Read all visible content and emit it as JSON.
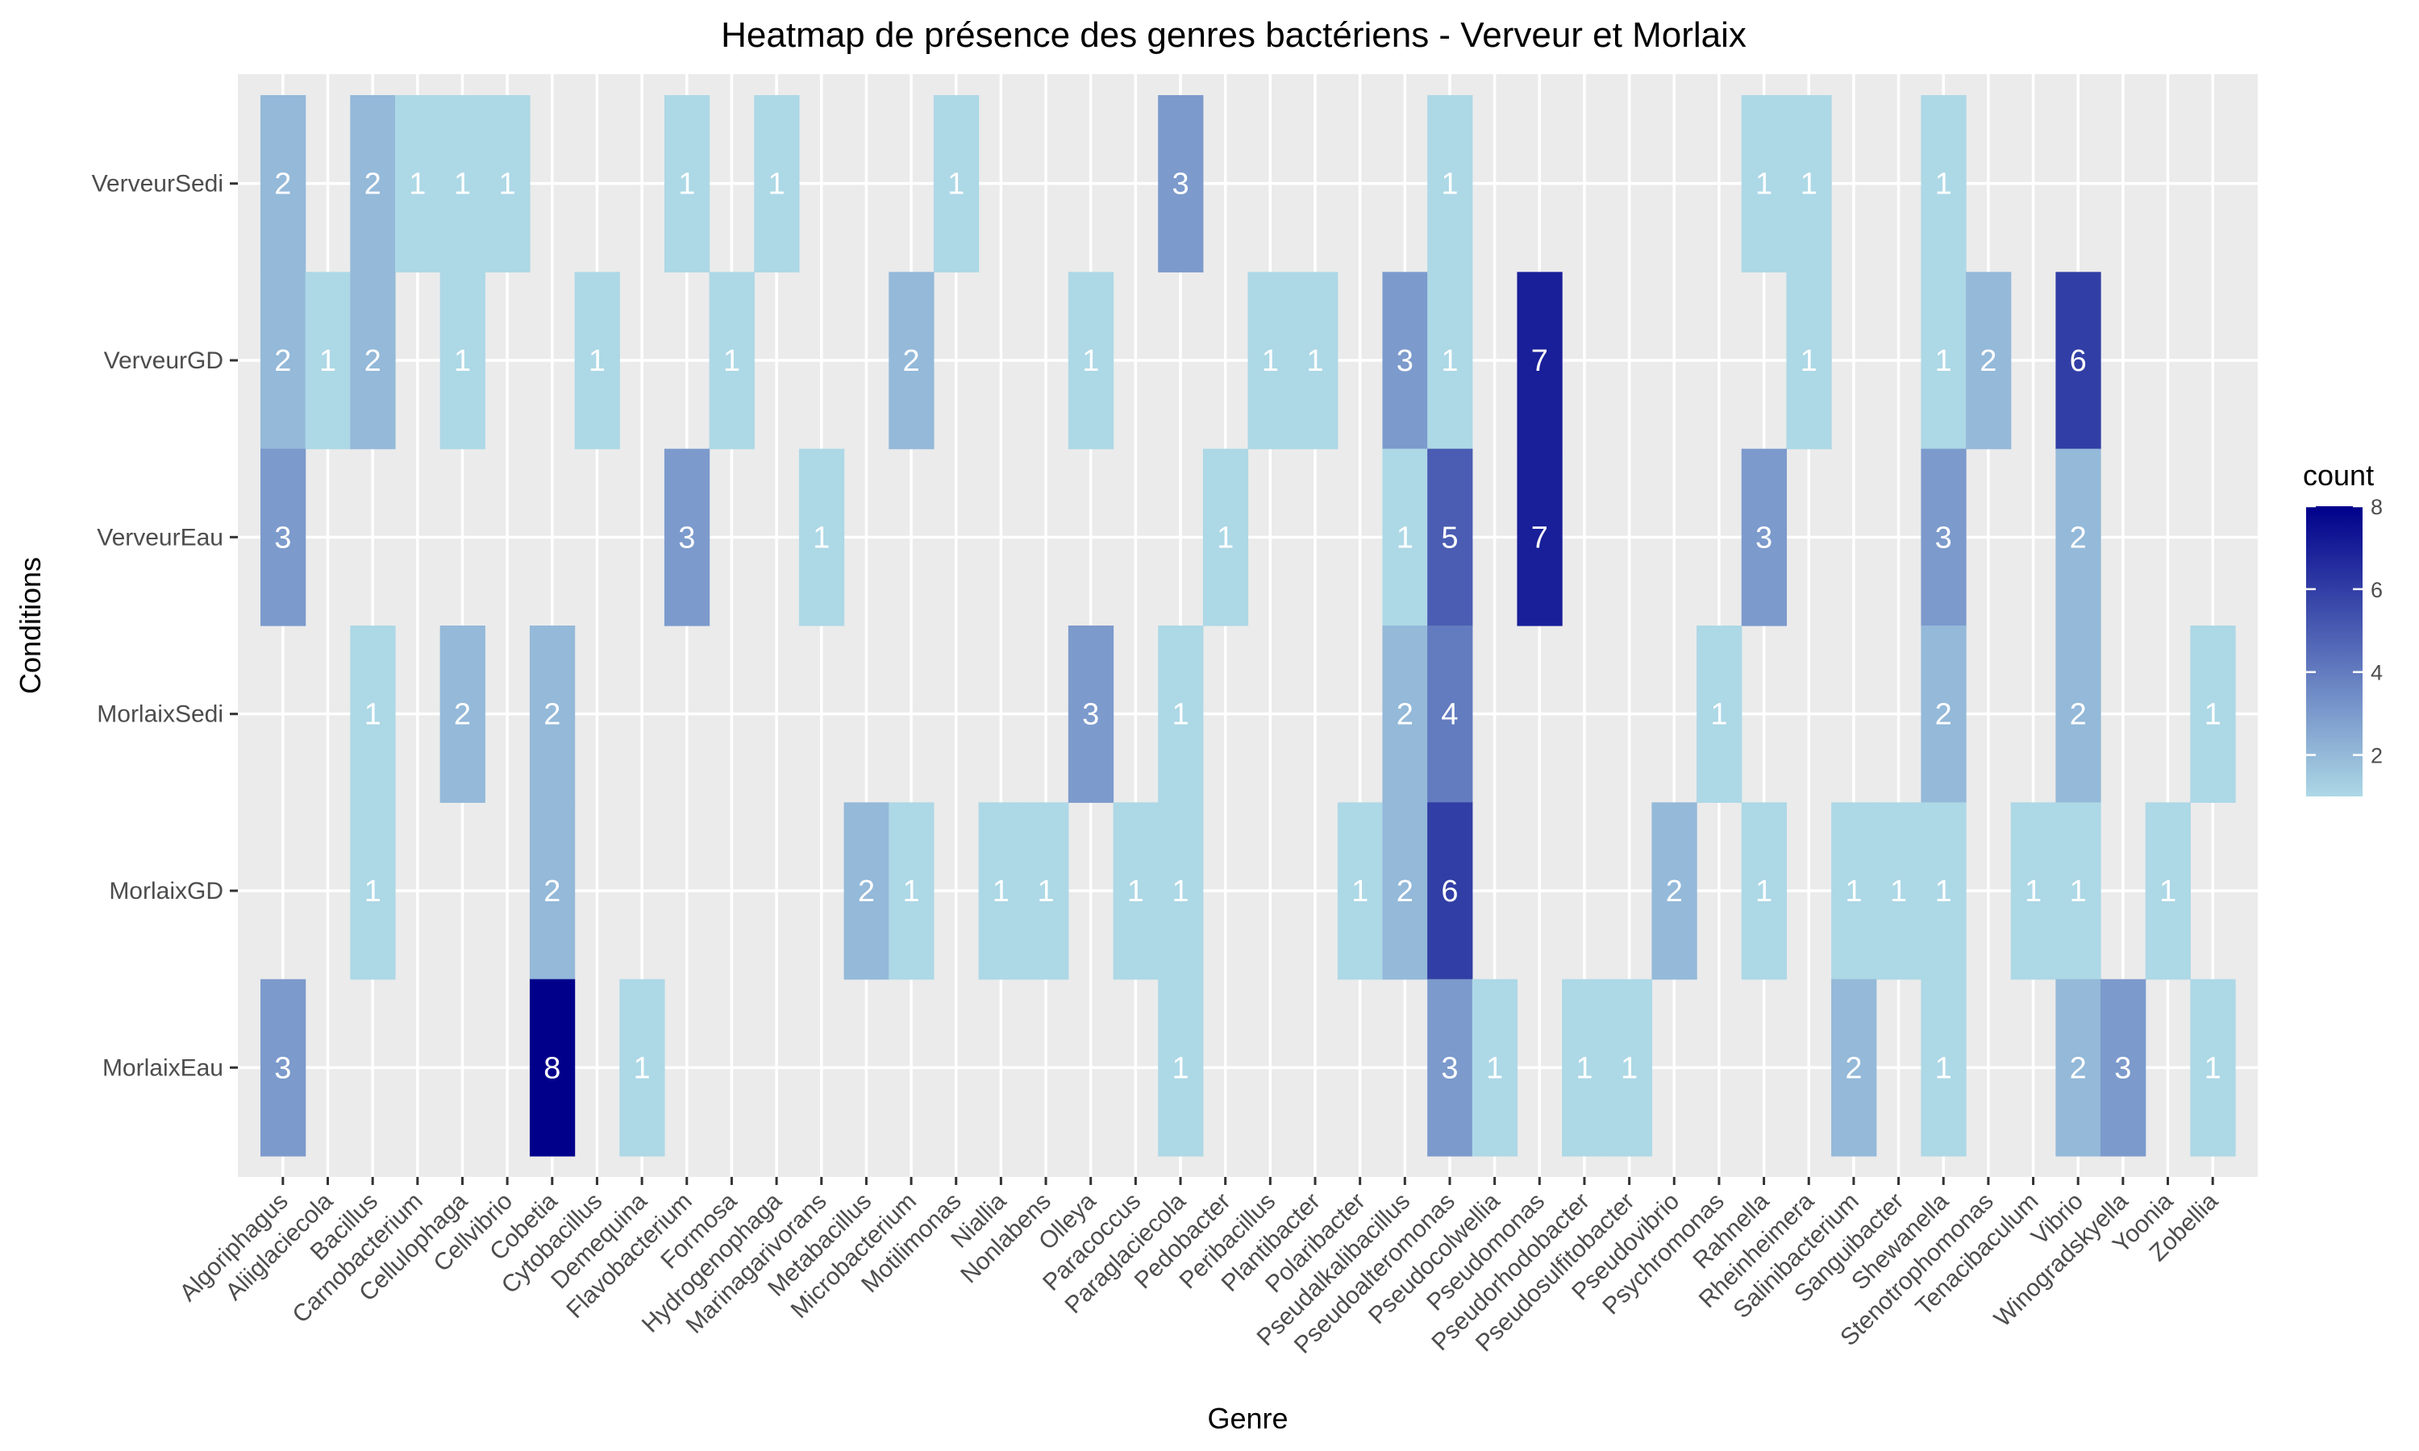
{
  "chart_data": {
    "type": "heatmap",
    "title": "Heatmap de présence des genres bactériens - Verveur et Morlaix",
    "xlabel": "Genre",
    "ylabel": "Conditions",
    "x": [
      "Algoriphagus",
      "Aliiglaciecola",
      "Bacillus",
      "Carnobacterium",
      "Cellulophaga",
      "Cellvibrio",
      "Cobetia",
      "Cytobacillus",
      "Demequina",
      "Flavobacterium",
      "Formosa",
      "Hydrogenophaga",
      "Marinagarivorans",
      "Metabacillus",
      "Microbacterium",
      "Motilimonas",
      "Niallia",
      "Nonlabens",
      "Olleya",
      "Paracoccus",
      "Paraglaciecola",
      "Pedobacter",
      "Peribacillus",
      "Plantibacter",
      "Polaribacter",
      "Pseudalkalibacillus",
      "Pseudoalteromonas",
      "Pseudocolwellia",
      "Pseudomonas",
      "Pseudorhodobacter",
      "Pseudosulfitobacter",
      "Pseudovibrio",
      "Psychromonas",
      "Rahnella",
      "Rheinheimera",
      "Salinibacterium",
      "Sanguibacter",
      "Shewanella",
      "Stenotrophomonas",
      "Tenacibaculum",
      "Vibrio",
      "Winogradskyella",
      "Yoonia",
      "Zobellia"
    ],
    "y": [
      "VerveurSedi",
      "VerveurGD",
      "VerveurEau",
      "MorlaixSedi",
      "MorlaixGD",
      "MorlaixEau"
    ],
    "cells": [
      [
        "VerveurSedi",
        "Algoriphagus",
        2
      ],
      [
        "VerveurSedi",
        "Bacillus",
        2
      ],
      [
        "VerveurSedi",
        "Carnobacterium",
        1
      ],
      [
        "VerveurSedi",
        "Cellulophaga",
        1
      ],
      [
        "VerveurSedi",
        "Cellvibrio",
        1
      ],
      [
        "VerveurSedi",
        "Flavobacterium",
        1
      ],
      [
        "VerveurSedi",
        "Hydrogenophaga",
        1
      ],
      [
        "VerveurSedi",
        "Motilimonas",
        1
      ],
      [
        "VerveurSedi",
        "Paraglaciecola",
        3
      ],
      [
        "VerveurSedi",
        "Pseudoalteromonas",
        1
      ],
      [
        "VerveurSedi",
        "Rahnella",
        1
      ],
      [
        "VerveurSedi",
        "Rheinheimera",
        1
      ],
      [
        "VerveurSedi",
        "Shewanella",
        1
      ],
      [
        "VerveurGD",
        "Algoriphagus",
        2
      ],
      [
        "VerveurGD",
        "Aliiglaciecola",
        1
      ],
      [
        "VerveurGD",
        "Bacillus",
        2
      ],
      [
        "VerveurGD",
        "Cellulophaga",
        1
      ],
      [
        "VerveurGD",
        "Cytobacillus",
        1
      ],
      [
        "VerveurGD",
        "Formosa",
        1
      ],
      [
        "VerveurGD",
        "Microbacterium",
        2
      ],
      [
        "VerveurGD",
        "Olleya",
        1
      ],
      [
        "VerveurGD",
        "Peribacillus",
        1
      ],
      [
        "VerveurGD",
        "Plantibacter",
        1
      ],
      [
        "VerveurGD",
        "Pseudalkalibacillus",
        3
      ],
      [
        "VerveurGD",
        "Pseudoalteromonas",
        1
      ],
      [
        "VerveurGD",
        "Pseudomonas",
        7
      ],
      [
        "VerveurGD",
        "Rheinheimera",
        1
      ],
      [
        "VerveurGD",
        "Shewanella",
        1
      ],
      [
        "VerveurGD",
        "Stenotrophomonas",
        2
      ],
      [
        "VerveurGD",
        "Vibrio",
        6
      ],
      [
        "VerveurEau",
        "Algoriphagus",
        3
      ],
      [
        "VerveurEau",
        "Flavobacterium",
        3
      ],
      [
        "VerveurEau",
        "Marinagarivorans",
        1
      ],
      [
        "VerveurEau",
        "Pedobacter",
        1
      ],
      [
        "VerveurEau",
        "Pseudalkalibacillus",
        1
      ],
      [
        "VerveurEau",
        "Pseudoalteromonas",
        5
      ],
      [
        "VerveurEau",
        "Pseudomonas",
        7
      ],
      [
        "VerveurEau",
        "Rahnella",
        3
      ],
      [
        "VerveurEau",
        "Shewanella",
        3
      ],
      [
        "VerveurEau",
        "Vibrio",
        2
      ],
      [
        "MorlaixSedi",
        "Bacillus",
        1
      ],
      [
        "MorlaixSedi",
        "Cellulophaga",
        2
      ],
      [
        "MorlaixSedi",
        "Cobetia",
        2
      ],
      [
        "MorlaixSedi",
        "Olleya",
        3
      ],
      [
        "MorlaixSedi",
        "Paraglaciecola",
        1
      ],
      [
        "MorlaixSedi",
        "Pseudalkalibacillus",
        2
      ],
      [
        "MorlaixSedi",
        "Pseudoalteromonas",
        4
      ],
      [
        "MorlaixSedi",
        "Psychromonas",
        1
      ],
      [
        "MorlaixSedi",
        "Shewanella",
        2
      ],
      [
        "MorlaixSedi",
        "Vibrio",
        2
      ],
      [
        "MorlaixSedi",
        "Zobellia",
        1
      ],
      [
        "MorlaixGD",
        "Bacillus",
        1
      ],
      [
        "MorlaixGD",
        "Cobetia",
        2
      ],
      [
        "MorlaixGD",
        "Metabacillus",
        2
      ],
      [
        "MorlaixGD",
        "Microbacterium",
        1
      ],
      [
        "MorlaixGD",
        "Niallia",
        1
      ],
      [
        "MorlaixGD",
        "Nonlabens",
        1
      ],
      [
        "MorlaixGD",
        "Paracoccus",
        1
      ],
      [
        "MorlaixGD",
        "Paraglaciecola",
        1
      ],
      [
        "MorlaixGD",
        "Polaribacter",
        1
      ],
      [
        "MorlaixGD",
        "Pseudalkalibacillus",
        2
      ],
      [
        "MorlaixGD",
        "Pseudoalteromonas",
        6
      ],
      [
        "MorlaixGD",
        "Pseudovibrio",
        2
      ],
      [
        "MorlaixGD",
        "Rahnella",
        1
      ],
      [
        "MorlaixGD",
        "Salinibacterium",
        1
      ],
      [
        "MorlaixGD",
        "Sanguibacter",
        1
      ],
      [
        "MorlaixGD",
        "Shewanella",
        1
      ],
      [
        "MorlaixGD",
        "Tenacibaculum",
        1
      ],
      [
        "MorlaixGD",
        "Vibrio",
        1
      ],
      [
        "MorlaixGD",
        "Yoonia",
        1
      ],
      [
        "MorlaixEau",
        "Algoriphagus",
        3
      ],
      [
        "MorlaixEau",
        "Cobetia",
        8
      ],
      [
        "MorlaixEau",
        "Demequina",
        1
      ],
      [
        "MorlaixEau",
        "Paraglaciecola",
        1
      ],
      [
        "MorlaixEau",
        "Pseudoalteromonas",
        3
      ],
      [
        "MorlaixEau",
        "Pseudocolwellia",
        1
      ],
      [
        "MorlaixEau",
        "Pseudorhodobacter",
        1
      ],
      [
        "MorlaixEau",
        "Pseudosulfitobacter",
        1
      ],
      [
        "MorlaixEau",
        "Salinibacterium",
        2
      ],
      [
        "MorlaixEau",
        "Shewanella",
        1
      ],
      [
        "MorlaixEau",
        "Vibrio",
        2
      ],
      [
        "MorlaixEau",
        "Winogradskyella",
        3
      ],
      [
        "MorlaixEau",
        "Zobellia",
        1
      ]
    ],
    "legend": {
      "title": "count",
      "ticks": [
        2,
        4,
        6,
        8
      ],
      "range": [
        1,
        8
      ],
      "placement": "right",
      "color_low": "#add8e6",
      "color_high": "#00008b"
    },
    "panel_color": "#ebebeb",
    "grid_color": "#ffffff",
    "grid": true
  }
}
